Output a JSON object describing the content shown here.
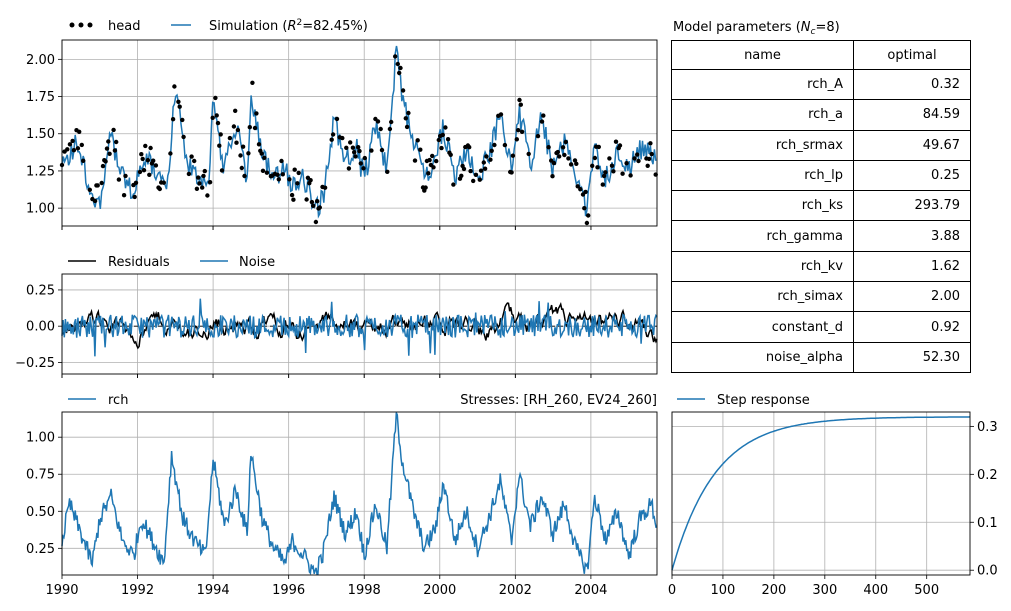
{
  "chart_data": [
    {
      "type": "line",
      "panel": "observations-vs-simulation",
      "series": [
        {
          "name": "head",
          "style": "dots",
          "color": "#000000"
        },
        {
          "name": "Simulation ($R^2$=82.45%)",
          "style": "line",
          "color": "#1f77b4"
        }
      ],
      "legend_labels": {
        "head": "head",
        "sim_prefix": "Simulation (",
        "sim_r": "R",
        "sim_sup": "2",
        "sim_suffix": "=82.45%)"
      },
      "xlim": [
        1990.0,
        2005.75
      ],
      "ylim": [
        0.88,
        2.13
      ],
      "yticks": [
        "1.00",
        "1.25",
        "1.50",
        "1.75",
        "2.00"
      ],
      "approx_points": {
        "x": [
          1990.0,
          1990.4,
          1990.75,
          1991.0,
          1991.3,
          1991.6,
          1991.9,
          1992.2,
          1992.5,
          1992.8,
          1993.0,
          1993.3,
          1993.6,
          1993.9,
          1994.0,
          1994.3,
          1994.6,
          1994.9,
          1995.0,
          1995.3,
          1995.6,
          1995.9,
          1996.1,
          1996.4,
          1996.7,
          1996.9,
          1997.2,
          1997.5,
          1997.8,
          1998.0,
          1998.3,
          1998.6,
          1998.85,
          1999.0,
          1999.3,
          1999.6,
          1999.9,
          2000.1,
          2000.4,
          2000.7,
          2001.0,
          2001.3,
          2001.6,
          2001.9,
          2002.1,
          2002.4,
          2002.7,
          2003.0,
          2003.3,
          2003.6,
          2003.9,
          2004.1,
          2004.4,
          2004.7,
          2005.0,
          2005.3,
          2005.6,
          2005.75
        ],
        "sim": [
          1.25,
          1.45,
          1.12,
          1.05,
          1.48,
          1.2,
          1.1,
          1.35,
          1.22,
          1.15,
          1.8,
          1.3,
          1.2,
          1.15,
          1.72,
          1.25,
          1.55,
          1.2,
          1.8,
          1.35,
          1.2,
          1.25,
          1.15,
          1.2,
          1.0,
          1.05,
          1.6,
          1.3,
          1.4,
          1.2,
          1.55,
          1.25,
          2.08,
          1.75,
          1.45,
          1.2,
          1.35,
          1.55,
          1.2,
          1.4,
          1.2,
          1.35,
          1.62,
          1.3,
          1.65,
          1.3,
          1.6,
          1.25,
          1.45,
          1.2,
          0.98,
          1.4,
          1.2,
          1.35,
          1.25,
          1.4,
          1.35,
          1.3
        ]
      }
    },
    {
      "type": "line",
      "panel": "residuals-noise",
      "series": [
        {
          "name": "Residuals",
          "color": "#000000"
        },
        {
          "name": "Noise",
          "color": "#1f77b4"
        }
      ],
      "ylim": [
        -0.33,
        0.36
      ],
      "yticks": [
        "−0.25",
        "0.00",
        "0.25"
      ]
    },
    {
      "type": "line",
      "panel": "recharge-contribution",
      "series": [
        {
          "name": "rch",
          "color": "#1f77b4"
        }
      ],
      "annotation": "Stresses: [RH_260, EV24_260]",
      "xlim": [
        1990.0,
        2005.75
      ],
      "ylim": [
        0.07,
        1.17
      ],
      "xticks": [
        "1990",
        "1992",
        "1994",
        "1996",
        "1998",
        "2000",
        "2002",
        "2004"
      ],
      "yticks": [
        "0.25",
        "0.50",
        "0.75",
        "1.00"
      ],
      "approx_points": {
        "x": [
          1990.0,
          1990.2,
          1990.5,
          1990.8,
          1991.0,
          1991.3,
          1991.6,
          1991.9,
          1992.1,
          1992.4,
          1992.7,
          1992.9,
          1993.2,
          1993.5,
          1993.8,
          1994.0,
          1994.3,
          1994.6,
          1994.9,
          1995.0,
          1995.3,
          1995.6,
          1995.9,
          1996.1,
          1996.4,
          1996.7,
          1996.9,
          1997.2,
          1997.5,
          1997.8,
          1998.0,
          1998.3,
          1998.6,
          1998.85,
          1999.0,
          1999.3,
          1999.6,
          1999.9,
          2000.1,
          2000.4,
          2000.7,
          2001.0,
          2001.3,
          2001.6,
          2001.9,
          2002.1,
          2002.4,
          2002.7,
          2003.0,
          2003.3,
          2003.6,
          2003.9,
          2004.1,
          2004.4,
          2004.7,
          2005.0,
          2005.3,
          2005.6,
          2005.75
        ],
        "y": [
          0.3,
          0.55,
          0.35,
          0.15,
          0.45,
          0.6,
          0.3,
          0.2,
          0.45,
          0.3,
          0.15,
          0.88,
          0.45,
          0.3,
          0.2,
          0.85,
          0.4,
          0.65,
          0.35,
          0.9,
          0.45,
          0.25,
          0.15,
          0.3,
          0.2,
          0.08,
          0.2,
          0.6,
          0.35,
          0.5,
          0.2,
          0.55,
          0.25,
          1.17,
          0.85,
          0.5,
          0.25,
          0.4,
          0.7,
          0.3,
          0.5,
          0.25,
          0.45,
          0.7,
          0.3,
          0.75,
          0.4,
          0.6,
          0.35,
          0.55,
          0.25,
          0.1,
          0.6,
          0.3,
          0.5,
          0.2,
          0.45,
          0.55,
          0.4
        ]
      }
    },
    {
      "type": "line",
      "panel": "step-response",
      "series": [
        {
          "name": "Step response",
          "color": "#1f77b4"
        }
      ],
      "xlim": [
        0,
        585
      ],
      "ylim": [
        -0.01,
        0.33
      ],
      "xticks": [
        "0",
        "100",
        "200",
        "300",
        "400",
        "500"
      ],
      "yticks": [
        "0.0",
        "0.1",
        "0.2",
        "0.3"
      ],
      "model": {
        "A": 0.32,
        "a": 84.59
      }
    }
  ],
  "table": {
    "title_prefix": "Model parameters (",
    "title_sym": "N",
    "title_sub": "c",
    "title_suffix": "=8)",
    "headers": [
      "name",
      "optimal"
    ],
    "rows": [
      [
        "rch_A",
        "0.32"
      ],
      [
        "rch_a",
        "84.59"
      ],
      [
        "rch_srmax",
        "49.67"
      ],
      [
        "rch_lp",
        "0.25"
      ],
      [
        "rch_ks",
        "293.79"
      ],
      [
        "rch_gamma",
        "3.88"
      ],
      [
        "rch_kv",
        "1.62"
      ],
      [
        "rch_simax",
        "2.00"
      ],
      [
        "constant_d",
        "0.92"
      ],
      [
        "noise_alpha",
        "52.30"
      ]
    ]
  }
}
